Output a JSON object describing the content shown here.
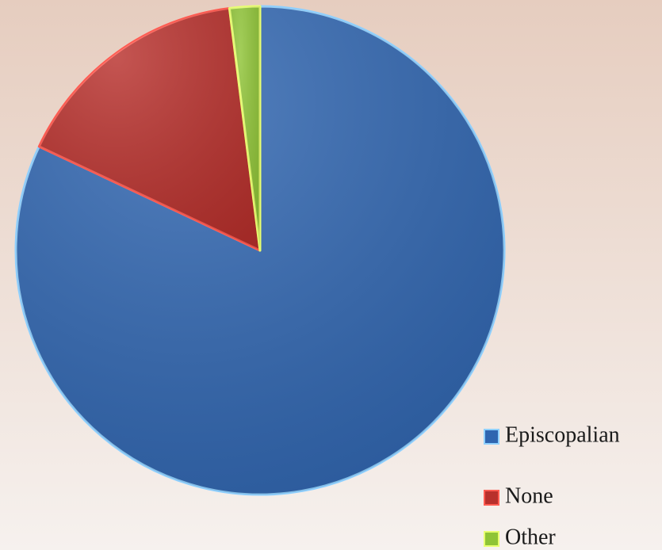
{
  "chart_data": {
    "type": "pie",
    "categories": [
      "Episcopalian",
      "None",
      "Other"
    ],
    "values": [
      82,
      16,
      2
    ],
    "colors": [
      "#2f65b0",
      "#b8302c",
      "#8fc436"
    ],
    "edge_colors": [
      "#8fd0ff",
      "#ff5a50",
      "#e8ff70"
    ],
    "legend": "right-bottom"
  }
}
